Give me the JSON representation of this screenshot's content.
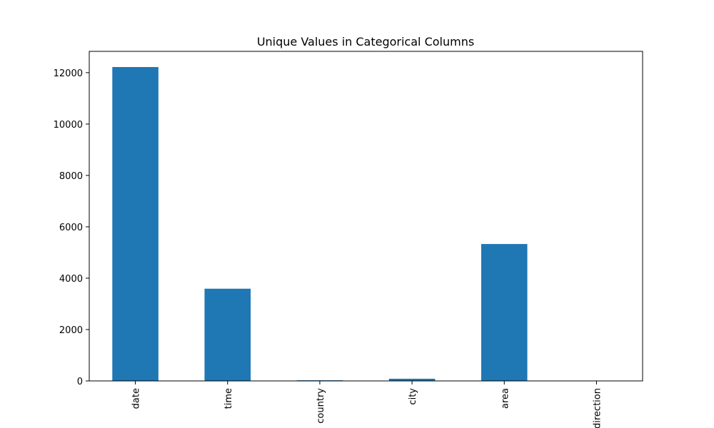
{
  "chart_data": {
    "type": "bar",
    "title": "Unique Values in Categorical Columns",
    "xlabel": "",
    "ylabel": "",
    "categories": [
      "date",
      "time",
      "country",
      "city",
      "area",
      "direction"
    ],
    "values": [
      12220,
      3590,
      25,
      85,
      5330,
      2
    ],
    "ylim": [
      0,
      12830
    ],
    "yticks": [
      0,
      2000,
      4000,
      6000,
      8000,
      10000,
      12000
    ],
    "ytick_labels": [
      "0",
      "2000",
      "4000",
      "6000",
      "8000",
      "10000",
      "12000"
    ],
    "grid": false,
    "legend": "none",
    "colors": {
      "bar": "#1f77b4",
      "axis": "#000000",
      "background": "#ffffff"
    }
  }
}
